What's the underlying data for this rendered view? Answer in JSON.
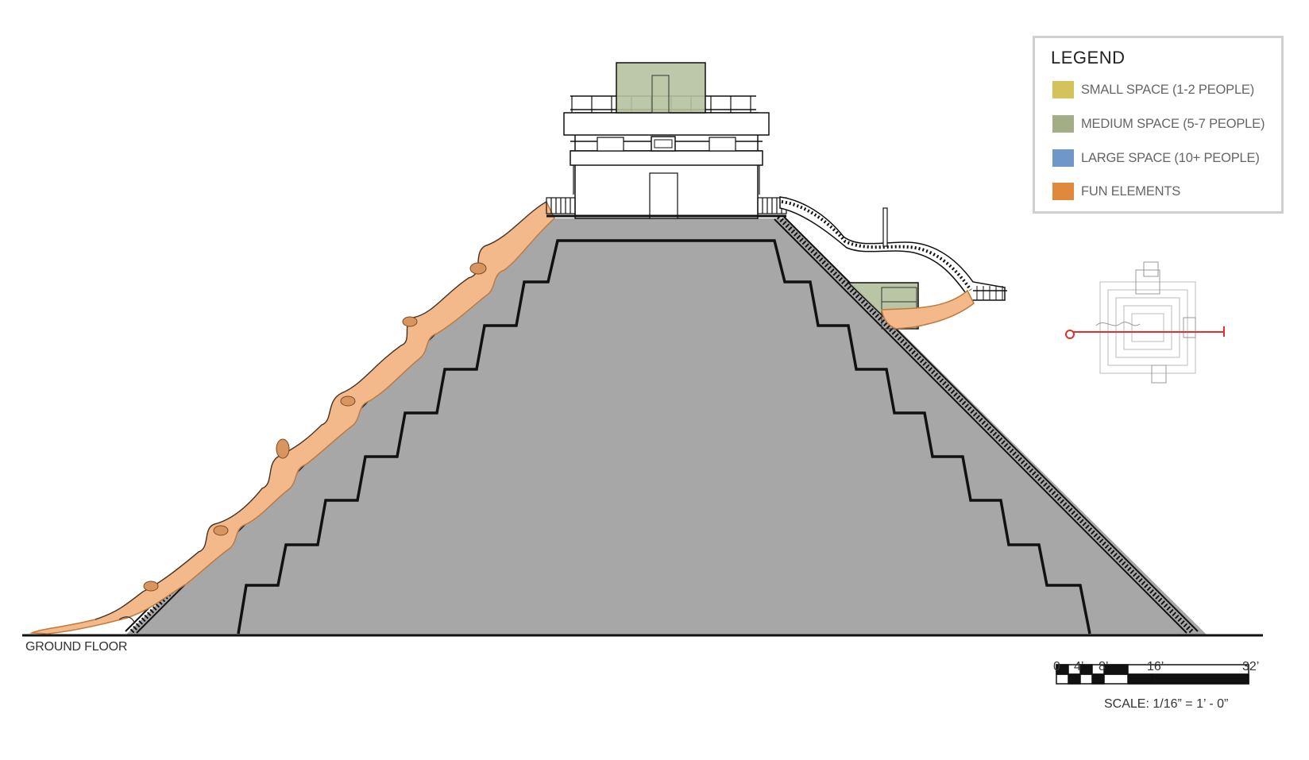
{
  "legend": {
    "title": "LEGEND",
    "items": [
      {
        "label": "SMALL SPACE (1-2 PEOPLE)",
        "color": "#d4c35a"
      },
      {
        "label": "MEDIUM SPACE (5-7 PEOPLE)",
        "color": "#a3ad86"
      },
      {
        "label": "LARGE SPACE (10+ PEOPLE)",
        "color": "#6f97c7"
      },
      {
        "label": "FUN ELEMENTS",
        "color": "#e0883c"
      }
    ]
  },
  "ground_label": "GROUND FLOOR",
  "scale": {
    "ticks": [
      "0",
      "4’",
      "8’",
      "16’",
      "32’"
    ],
    "text": "SCALE: 1/16” = 1’ - 0”"
  },
  "colors": {
    "pyramid_fill": "#a7a7a7",
    "slide": "#f3b98a",
    "medium_space": "#b6c2a0",
    "plan_marker": "#e03131"
  }
}
